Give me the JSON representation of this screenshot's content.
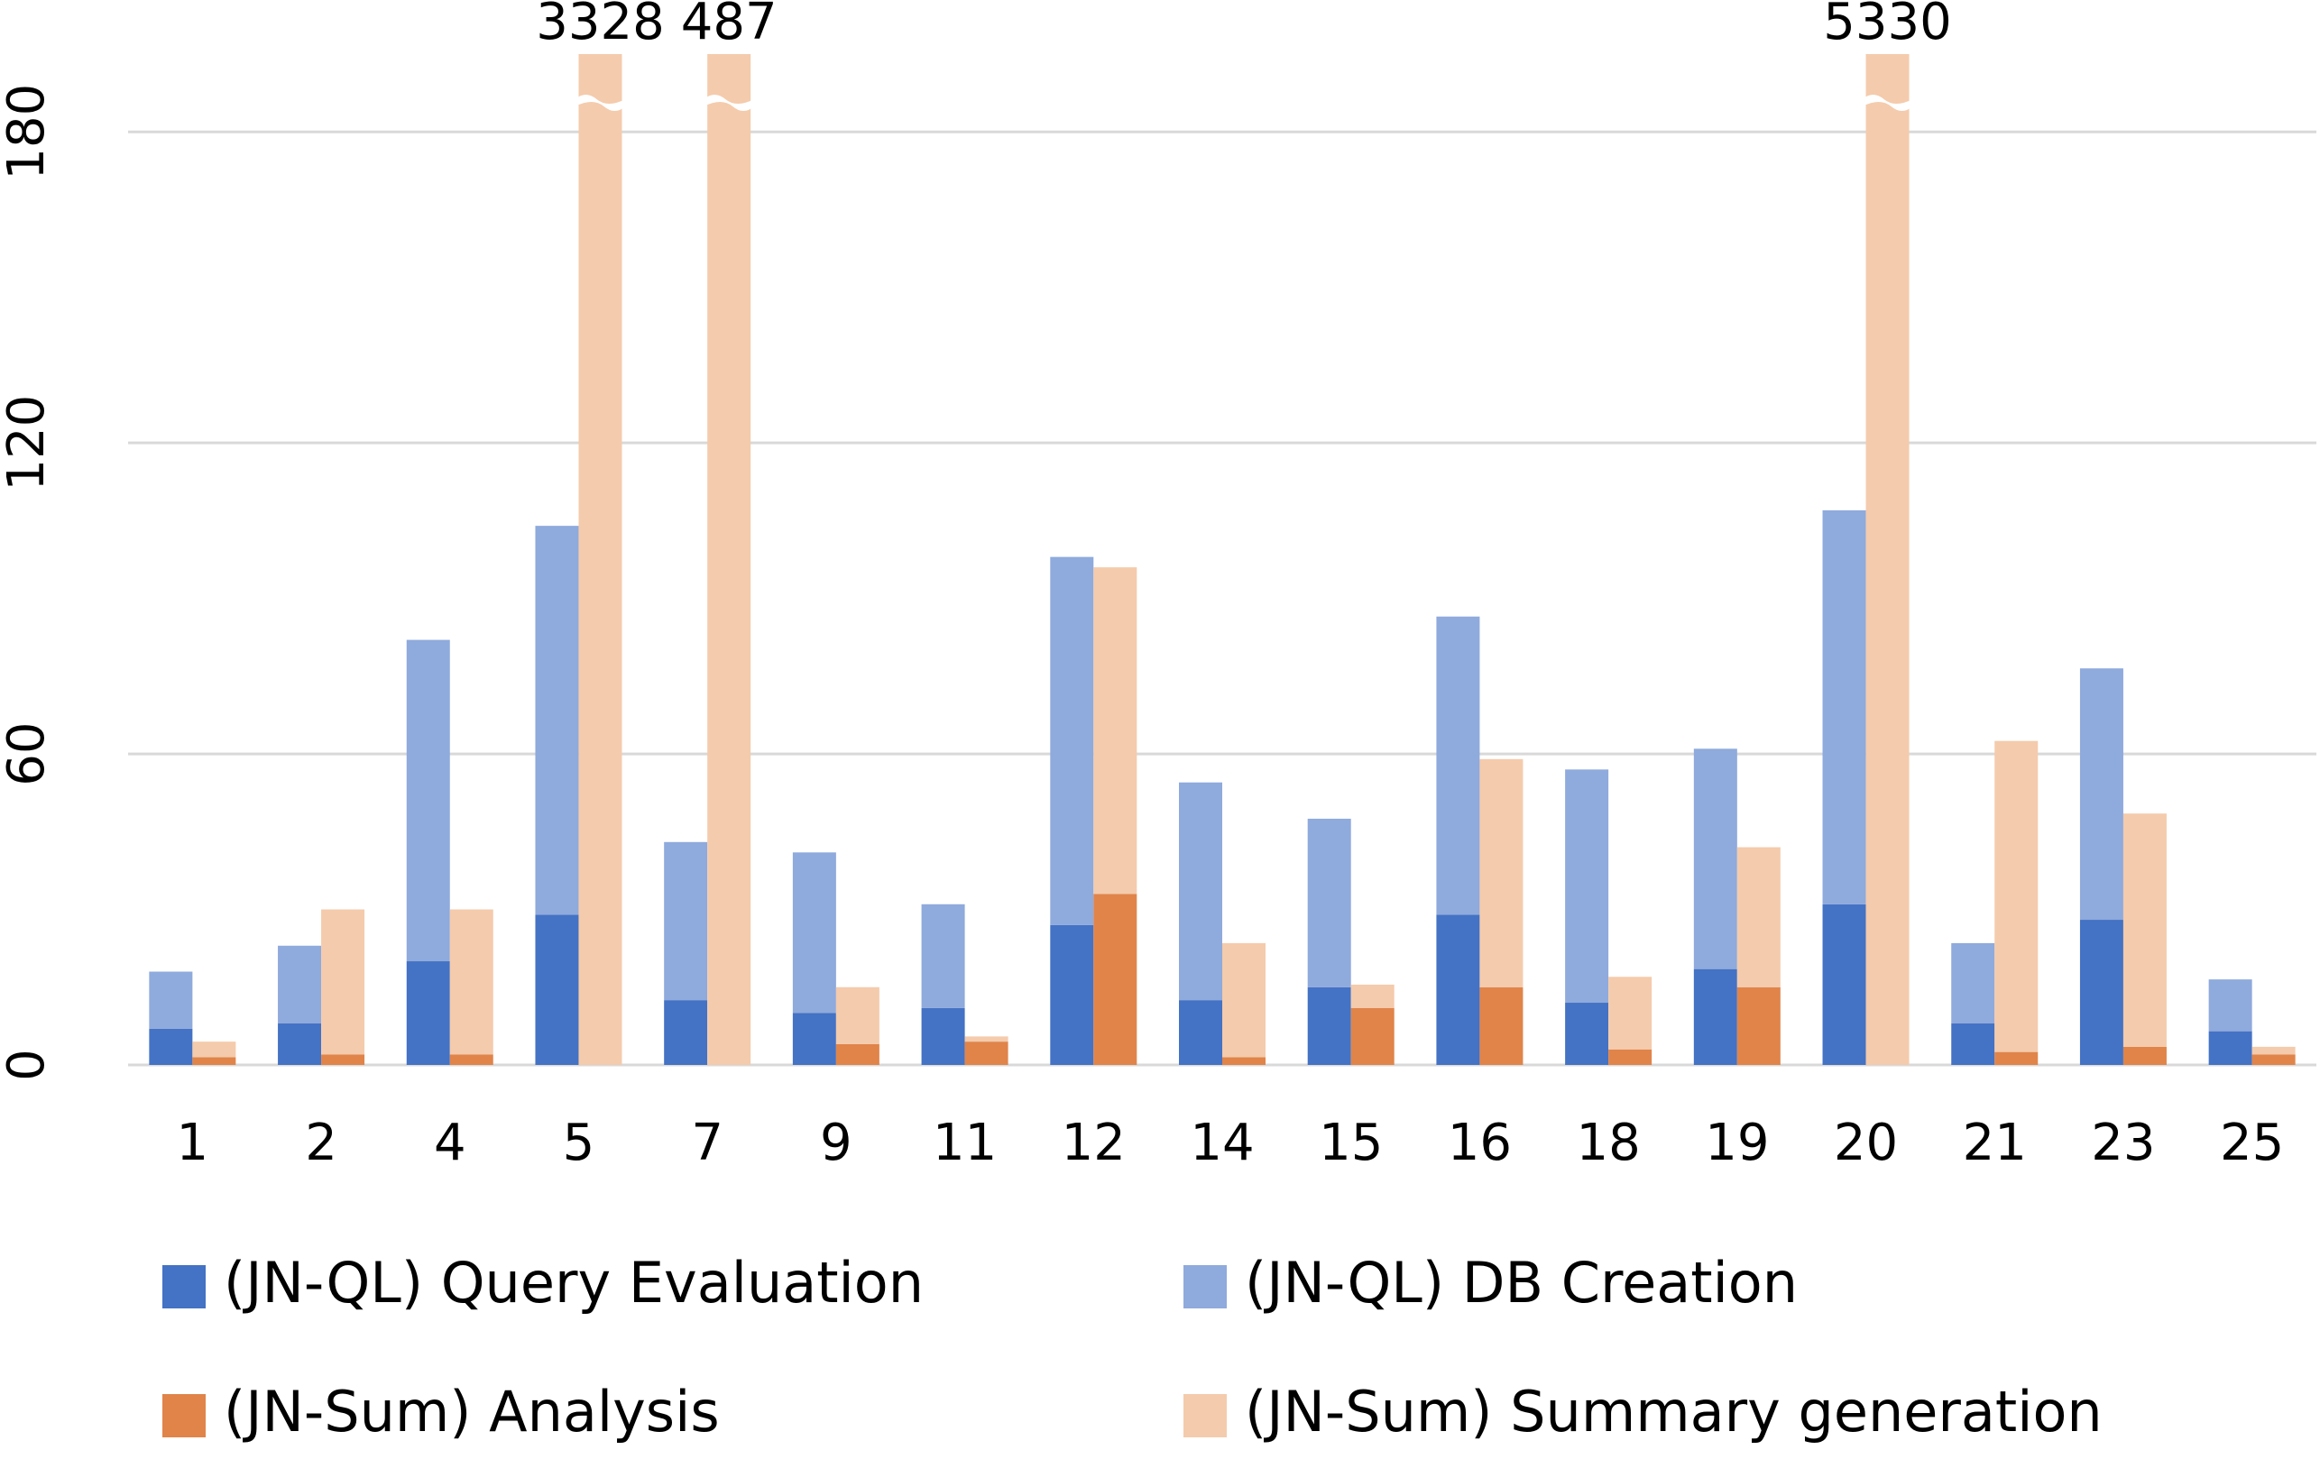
{
  "chart_data": {
    "type": "bar",
    "categories": [
      "1",
      "2",
      "4",
      "5",
      "7",
      "9",
      "11",
      "12",
      "14",
      "15",
      "16",
      "18",
      "19",
      "20",
      "21",
      "23",
      "25"
    ],
    "series": [
      {
        "name": "(JN-QL) Query Evaluation",
        "color": "#4472c4",
        "values": [
          7,
          8,
          20,
          29,
          12.5,
          10,
          11,
          27,
          12.5,
          15,
          29,
          12,
          18.5,
          31,
          8,
          28,
          6.5
        ]
      },
      {
        "name": "(JN-QL) DB Creation",
        "color": "#8faadc",
        "values": [
          11,
          15,
          62,
          75,
          30.5,
          31,
          20,
          71,
          42,
          32.5,
          57.5,
          45,
          42.5,
          76,
          15.5,
          48.5,
          10
        ]
      },
      {
        "name": "(JN-Sum) Analysis",
        "color": "#e0844a",
        "values": [
          1.5,
          2,
          2,
          0,
          0,
          4,
          4.5,
          33,
          1.5,
          11,
          15,
          3,
          15,
          0,
          2.5,
          3.5,
          2
        ]
      },
      {
        "name": "(JN-Sum) Summary generation",
        "color": "#f4cbac",
        "values": [
          3,
          28,
          28,
          3328,
          487,
          11,
          1,
          63,
          22,
          4.5,
          44,
          14,
          27,
          5330,
          60,
          45,
          1.5
        ],
        "value_labels": [
          null,
          null,
          null,
          "3328",
          "487",
          null,
          null,
          null,
          null,
          null,
          null,
          null,
          null,
          "5330",
          null,
          null,
          null
        ]
      }
    ],
    "ylim": [
      0,
      195
    ],
    "yticks": [
      0,
      60,
      120,
      180
    ],
    "grid": true
  }
}
